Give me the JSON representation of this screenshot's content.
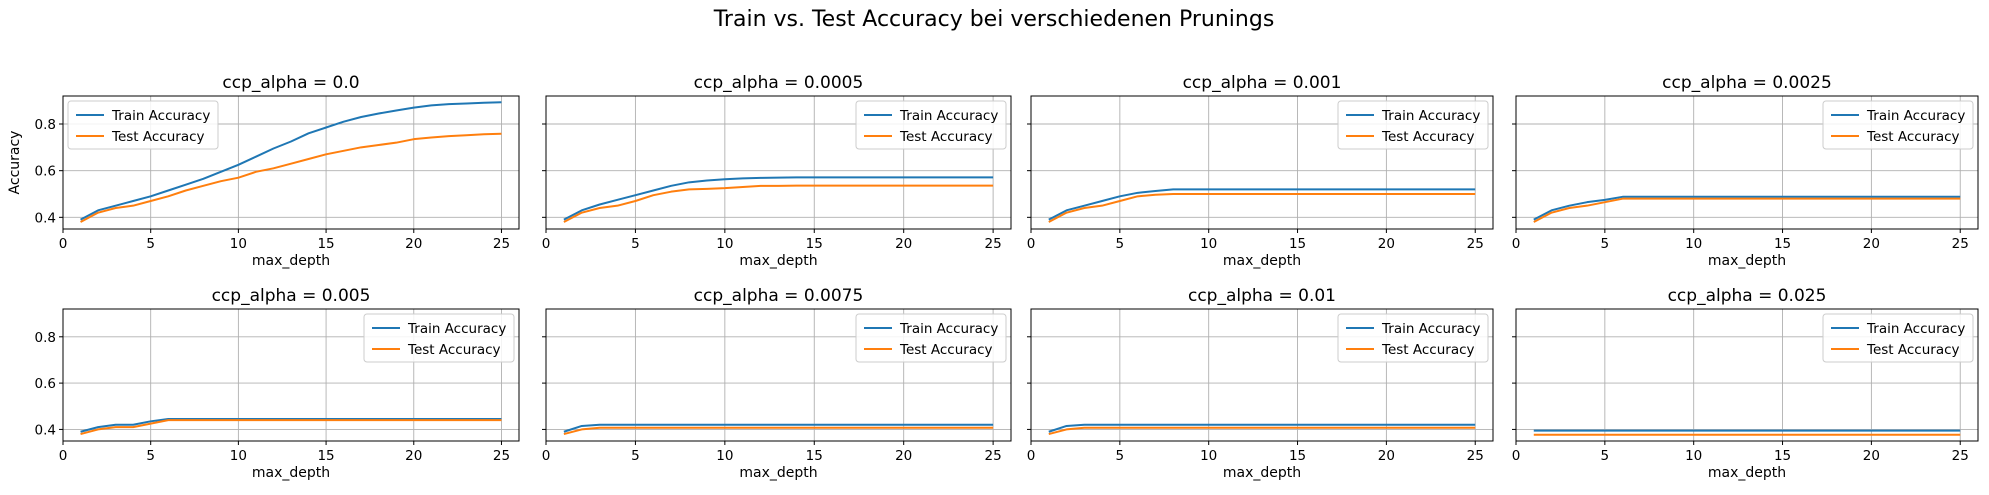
{
  "figure": {
    "title": "Train vs. Test Accuracy bei verschiedenen Prunings"
  },
  "style": {
    "train_color": "#1f77b4",
    "test_color": "#ff7f0e",
    "grid_color": "#b0b0b0",
    "axes_color": "#000000"
  },
  "chart_data": [
    {
      "type": "line",
      "title": "ccp_alpha = 0.0",
      "xlabel": "max_depth",
      "ylabel": "Accuracy",
      "xlim": [
        0,
        26
      ],
      "ylim": [
        0.35,
        0.92
      ],
      "xticks": [
        0,
        5,
        10,
        15,
        20,
        25
      ],
      "yticks": [
        0.4,
        0.6,
        0.8
      ],
      "yticklabels_visible": true,
      "grid": true,
      "legend": "upper left",
      "x": [
        1,
        2,
        3,
        4,
        5,
        6,
        7,
        8,
        9,
        10,
        11,
        12,
        13,
        14,
        15,
        16,
        17,
        18,
        19,
        20,
        21,
        22,
        23,
        24,
        25
      ],
      "series": [
        {
          "name": "Train Accuracy",
          "values": [
            0.39,
            0.43,
            0.45,
            0.47,
            0.49,
            0.515,
            0.54,
            0.565,
            0.595,
            0.625,
            0.66,
            0.695,
            0.725,
            0.76,
            0.785,
            0.81,
            0.83,
            0.845,
            0.858,
            0.87,
            0.88,
            0.885,
            0.888,
            0.891,
            0.893
          ]
        },
        {
          "name": "Test Accuracy",
          "values": [
            0.38,
            0.42,
            0.44,
            0.45,
            0.47,
            0.49,
            0.515,
            0.535,
            0.555,
            0.57,
            0.595,
            0.61,
            0.63,
            0.65,
            0.67,
            0.685,
            0.7,
            0.71,
            0.72,
            0.735,
            0.742,
            0.748,
            0.752,
            0.756,
            0.758
          ]
        }
      ]
    },
    {
      "type": "line",
      "title": "ccp_alpha = 0.0005",
      "xlabel": "max_depth",
      "ylabel": "",
      "xlim": [
        0,
        26
      ],
      "ylim": [
        0.35,
        0.92
      ],
      "xticks": [
        0,
        5,
        10,
        15,
        20,
        25
      ],
      "yticks": [
        0.4,
        0.6,
        0.8
      ],
      "yticklabels_visible": false,
      "grid": true,
      "legend": "upper right",
      "x": [
        1,
        2,
        3,
        4,
        5,
        6,
        7,
        8,
        9,
        10,
        11,
        12,
        13,
        14,
        15,
        16,
        17,
        18,
        19,
        20,
        21,
        22,
        23,
        24,
        25
      ],
      "series": [
        {
          "name": "Train Accuracy",
          "values": [
            0.39,
            0.43,
            0.455,
            0.475,
            0.495,
            0.515,
            0.535,
            0.55,
            0.558,
            0.563,
            0.567,
            0.569,
            0.57,
            0.571,
            0.571,
            0.571,
            0.571,
            0.571,
            0.571,
            0.571,
            0.571,
            0.571,
            0.571,
            0.571,
            0.571
          ]
        },
        {
          "name": "Test Accuracy",
          "values": [
            0.38,
            0.42,
            0.44,
            0.45,
            0.47,
            0.495,
            0.51,
            0.52,
            0.522,
            0.525,
            0.53,
            0.535,
            0.535,
            0.536,
            0.536,
            0.536,
            0.536,
            0.536,
            0.536,
            0.536,
            0.536,
            0.536,
            0.536,
            0.536,
            0.536
          ]
        }
      ]
    },
    {
      "type": "line",
      "title": "ccp_alpha = 0.001",
      "xlabel": "max_depth",
      "ylabel": "",
      "xlim": [
        0,
        26
      ],
      "ylim": [
        0.35,
        0.92
      ],
      "xticks": [
        0,
        5,
        10,
        15,
        20,
        25
      ],
      "yticks": [
        0.4,
        0.6,
        0.8
      ],
      "yticklabels_visible": false,
      "grid": true,
      "legend": "upper right",
      "x": [
        1,
        2,
        3,
        4,
        5,
        6,
        7,
        8,
        9,
        10,
        11,
        12,
        13,
        14,
        15,
        16,
        17,
        18,
        19,
        20,
        21,
        22,
        23,
        24,
        25
      ],
      "series": [
        {
          "name": "Train Accuracy",
          "values": [
            0.39,
            0.43,
            0.45,
            0.47,
            0.49,
            0.505,
            0.513,
            0.52,
            0.52,
            0.52,
            0.52,
            0.52,
            0.52,
            0.52,
            0.52,
            0.52,
            0.52,
            0.52,
            0.52,
            0.52,
            0.52,
            0.52,
            0.52,
            0.52,
            0.52
          ]
        },
        {
          "name": "Test Accuracy",
          "values": [
            0.38,
            0.42,
            0.44,
            0.45,
            0.47,
            0.49,
            0.497,
            0.5,
            0.5,
            0.5,
            0.5,
            0.5,
            0.5,
            0.5,
            0.5,
            0.5,
            0.5,
            0.5,
            0.5,
            0.5,
            0.5,
            0.5,
            0.5,
            0.5,
            0.5
          ]
        }
      ]
    },
    {
      "type": "line",
      "title": "ccp_alpha = 0.0025",
      "xlabel": "max_depth",
      "ylabel": "",
      "xlim": [
        0,
        26
      ],
      "ylim": [
        0.35,
        0.92
      ],
      "xticks": [
        0,
        5,
        10,
        15,
        20,
        25
      ],
      "yticks": [
        0.4,
        0.6,
        0.8
      ],
      "yticklabels_visible": false,
      "grid": true,
      "legend": "upper right",
      "x": [
        1,
        2,
        3,
        4,
        5,
        6,
        7,
        8,
        9,
        10,
        11,
        12,
        13,
        14,
        15,
        16,
        17,
        18,
        19,
        20,
        21,
        22,
        23,
        24,
        25
      ],
      "series": [
        {
          "name": "Train Accuracy",
          "values": [
            0.39,
            0.43,
            0.45,
            0.465,
            0.475,
            0.488,
            0.488,
            0.488,
            0.488,
            0.488,
            0.488,
            0.488,
            0.488,
            0.488,
            0.488,
            0.488,
            0.488,
            0.488,
            0.488,
            0.488,
            0.488,
            0.488,
            0.488,
            0.488,
            0.488
          ]
        },
        {
          "name": "Test Accuracy",
          "values": [
            0.38,
            0.42,
            0.44,
            0.45,
            0.465,
            0.48,
            0.48,
            0.48,
            0.48,
            0.48,
            0.48,
            0.48,
            0.48,
            0.48,
            0.48,
            0.48,
            0.48,
            0.48,
            0.48,
            0.48,
            0.48,
            0.48,
            0.48,
            0.48,
            0.48
          ]
        }
      ]
    },
    {
      "type": "line",
      "title": "ccp_alpha = 0.005",
      "xlabel": "max_depth",
      "ylabel": "",
      "xlim": [
        0,
        26
      ],
      "ylim": [
        0.35,
        0.92
      ],
      "xticks": [
        0,
        5,
        10,
        15,
        20,
        25
      ],
      "yticks": [
        0.4,
        0.6,
        0.8
      ],
      "yticklabels_visible": true,
      "grid": true,
      "legend": "upper right",
      "x": [
        1,
        2,
        3,
        4,
        5,
        6,
        7,
        8,
        9,
        10,
        11,
        12,
        13,
        14,
        15,
        16,
        17,
        18,
        19,
        20,
        21,
        22,
        23,
        24,
        25
      ],
      "series": [
        {
          "name": "Train Accuracy",
          "values": [
            0.39,
            0.41,
            0.42,
            0.42,
            0.435,
            0.445,
            0.445,
            0.445,
            0.445,
            0.445,
            0.445,
            0.445,
            0.445,
            0.445,
            0.445,
            0.445,
            0.445,
            0.445,
            0.445,
            0.445,
            0.445,
            0.445,
            0.445,
            0.445,
            0.445
          ]
        },
        {
          "name": "Test Accuracy",
          "values": [
            0.38,
            0.4,
            0.41,
            0.41,
            0.425,
            0.44,
            0.44,
            0.44,
            0.44,
            0.44,
            0.44,
            0.44,
            0.44,
            0.44,
            0.44,
            0.44,
            0.44,
            0.44,
            0.44,
            0.44,
            0.44,
            0.44,
            0.44,
            0.44,
            0.44
          ]
        }
      ]
    },
    {
      "type": "line",
      "title": "ccp_alpha = 0.0075",
      "xlabel": "max_depth",
      "ylabel": "",
      "xlim": [
        0,
        26
      ],
      "ylim": [
        0.35,
        0.92
      ],
      "xticks": [
        0,
        5,
        10,
        15,
        20,
        25
      ],
      "yticks": [
        0.4,
        0.6,
        0.8
      ],
      "yticklabels_visible": false,
      "grid": true,
      "legend": "upper right",
      "x": [
        1,
        2,
        3,
        4,
        5,
        6,
        7,
        8,
        9,
        10,
        11,
        12,
        13,
        14,
        15,
        16,
        17,
        18,
        19,
        20,
        21,
        22,
        23,
        24,
        25
      ],
      "series": [
        {
          "name": "Train Accuracy",
          "values": [
            0.39,
            0.415,
            0.42,
            0.42,
            0.42,
            0.42,
            0.42,
            0.42,
            0.42,
            0.42,
            0.42,
            0.42,
            0.42,
            0.42,
            0.42,
            0.42,
            0.42,
            0.42,
            0.42,
            0.42,
            0.42,
            0.42,
            0.42,
            0.42,
            0.42
          ]
        },
        {
          "name": "Test Accuracy",
          "values": [
            0.38,
            0.4,
            0.407,
            0.407,
            0.407,
            0.407,
            0.407,
            0.407,
            0.407,
            0.407,
            0.407,
            0.407,
            0.407,
            0.407,
            0.407,
            0.407,
            0.407,
            0.407,
            0.407,
            0.407,
            0.407,
            0.407,
            0.407,
            0.407,
            0.407
          ]
        }
      ]
    },
    {
      "type": "line",
      "title": "ccp_alpha = 0.01",
      "xlabel": "max_depth",
      "ylabel": "",
      "xlim": [
        0,
        26
      ],
      "ylim": [
        0.35,
        0.92
      ],
      "xticks": [
        0,
        5,
        10,
        15,
        20,
        25
      ],
      "yticks": [
        0.4,
        0.6,
        0.8
      ],
      "yticklabels_visible": false,
      "grid": true,
      "legend": "upper right",
      "x": [
        1,
        2,
        3,
        4,
        5,
        6,
        7,
        8,
        9,
        10,
        11,
        12,
        13,
        14,
        15,
        16,
        17,
        18,
        19,
        20,
        21,
        22,
        23,
        24,
        25
      ],
      "series": [
        {
          "name": "Train Accuracy",
          "values": [
            0.39,
            0.415,
            0.42,
            0.42,
            0.42,
            0.42,
            0.42,
            0.42,
            0.42,
            0.42,
            0.42,
            0.42,
            0.42,
            0.42,
            0.42,
            0.42,
            0.42,
            0.42,
            0.42,
            0.42,
            0.42,
            0.42,
            0.42,
            0.42,
            0.42
          ]
        },
        {
          "name": "Test Accuracy",
          "values": [
            0.38,
            0.4,
            0.407,
            0.407,
            0.407,
            0.407,
            0.407,
            0.407,
            0.407,
            0.407,
            0.407,
            0.407,
            0.407,
            0.407,
            0.407,
            0.407,
            0.407,
            0.407,
            0.407,
            0.407,
            0.407,
            0.407,
            0.407,
            0.407,
            0.407
          ]
        }
      ]
    },
    {
      "type": "line",
      "title": "ccp_alpha = 0.025",
      "xlabel": "max_depth",
      "ylabel": "",
      "xlim": [
        0,
        26
      ],
      "ylim": [
        0.35,
        0.92
      ],
      "xticks": [
        0,
        5,
        10,
        15,
        20,
        25
      ],
      "yticks": [
        0.4,
        0.6,
        0.8
      ],
      "yticklabels_visible": false,
      "grid": true,
      "legend": "upper right",
      "x": [
        1,
        2,
        3,
        4,
        5,
        6,
        7,
        8,
        9,
        10,
        11,
        12,
        13,
        14,
        15,
        16,
        17,
        18,
        19,
        20,
        21,
        22,
        23,
        24,
        25
      ],
      "series": [
        {
          "name": "Train Accuracy",
          "values": [
            0.395,
            0.395,
            0.395,
            0.395,
            0.395,
            0.395,
            0.395,
            0.395,
            0.395,
            0.395,
            0.395,
            0.395,
            0.395,
            0.395,
            0.395,
            0.395,
            0.395,
            0.395,
            0.395,
            0.395,
            0.395,
            0.395,
            0.395,
            0.395,
            0.395
          ]
        },
        {
          "name": "Test Accuracy",
          "values": [
            0.377,
            0.377,
            0.377,
            0.377,
            0.377,
            0.377,
            0.377,
            0.377,
            0.377,
            0.377,
            0.377,
            0.377,
            0.377,
            0.377,
            0.377,
            0.377,
            0.377,
            0.377,
            0.377,
            0.377,
            0.377,
            0.377,
            0.377,
            0.377,
            0.377
          ]
        }
      ]
    }
  ]
}
